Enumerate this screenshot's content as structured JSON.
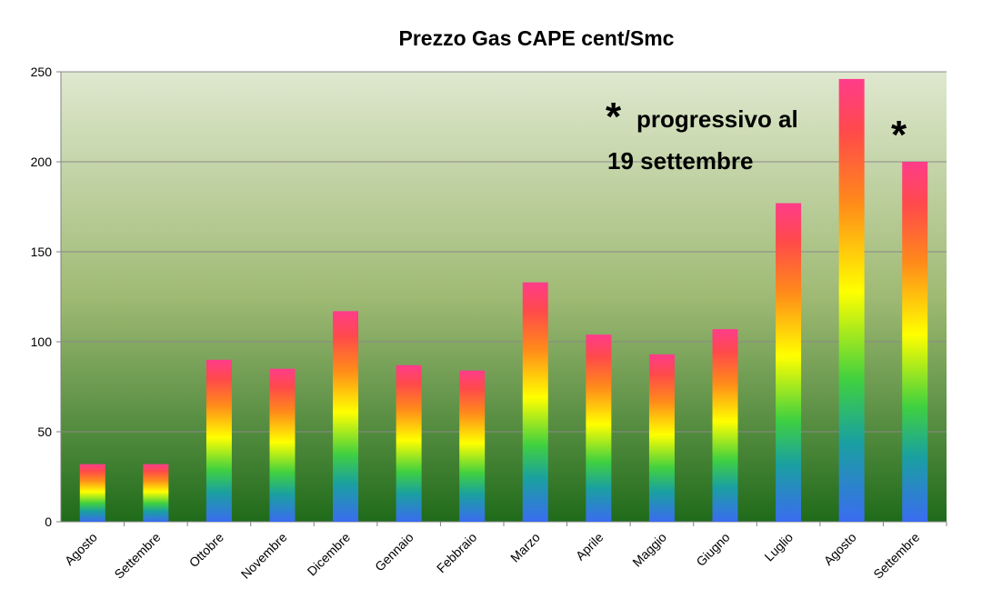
{
  "chart_data": {
    "type": "bar",
    "title": "Prezzo Gas CAPE cent/Smc",
    "xlabel": "",
    "ylabel": "",
    "ylim": [
      0,
      250
    ],
    "yticks": [
      "0",
      "50",
      "100",
      "150",
      "200",
      "250"
    ],
    "grid": true,
    "legend": "none",
    "categories": [
      "Agosto",
      "Settembre",
      "Ottobre",
      "Novembre",
      "Dicembre",
      "Gennaio",
      "Febbraio",
      "Marzo",
      "Aprile",
      "Maggio",
      "Giugno",
      "Luglio",
      "Agosto",
      "Settembre"
    ],
    "values": [
      32,
      32,
      90,
      85,
      117,
      87,
      84,
      133,
      104,
      93,
      107,
      177,
      246,
      200
    ],
    "annotations": [
      {
        "star": "*",
        "text_line1": "progressivo al",
        "text_line2": "19 settembre"
      },
      {
        "star": "*"
      }
    ],
    "colors": {
      "background_top": "#dfe8cf",
      "background_bottom": "#1f6b1a",
      "bar_bottom": "#3a6cf0",
      "bar_mid": "#ffff00",
      "bar_top": "#ff3c8a"
    }
  }
}
